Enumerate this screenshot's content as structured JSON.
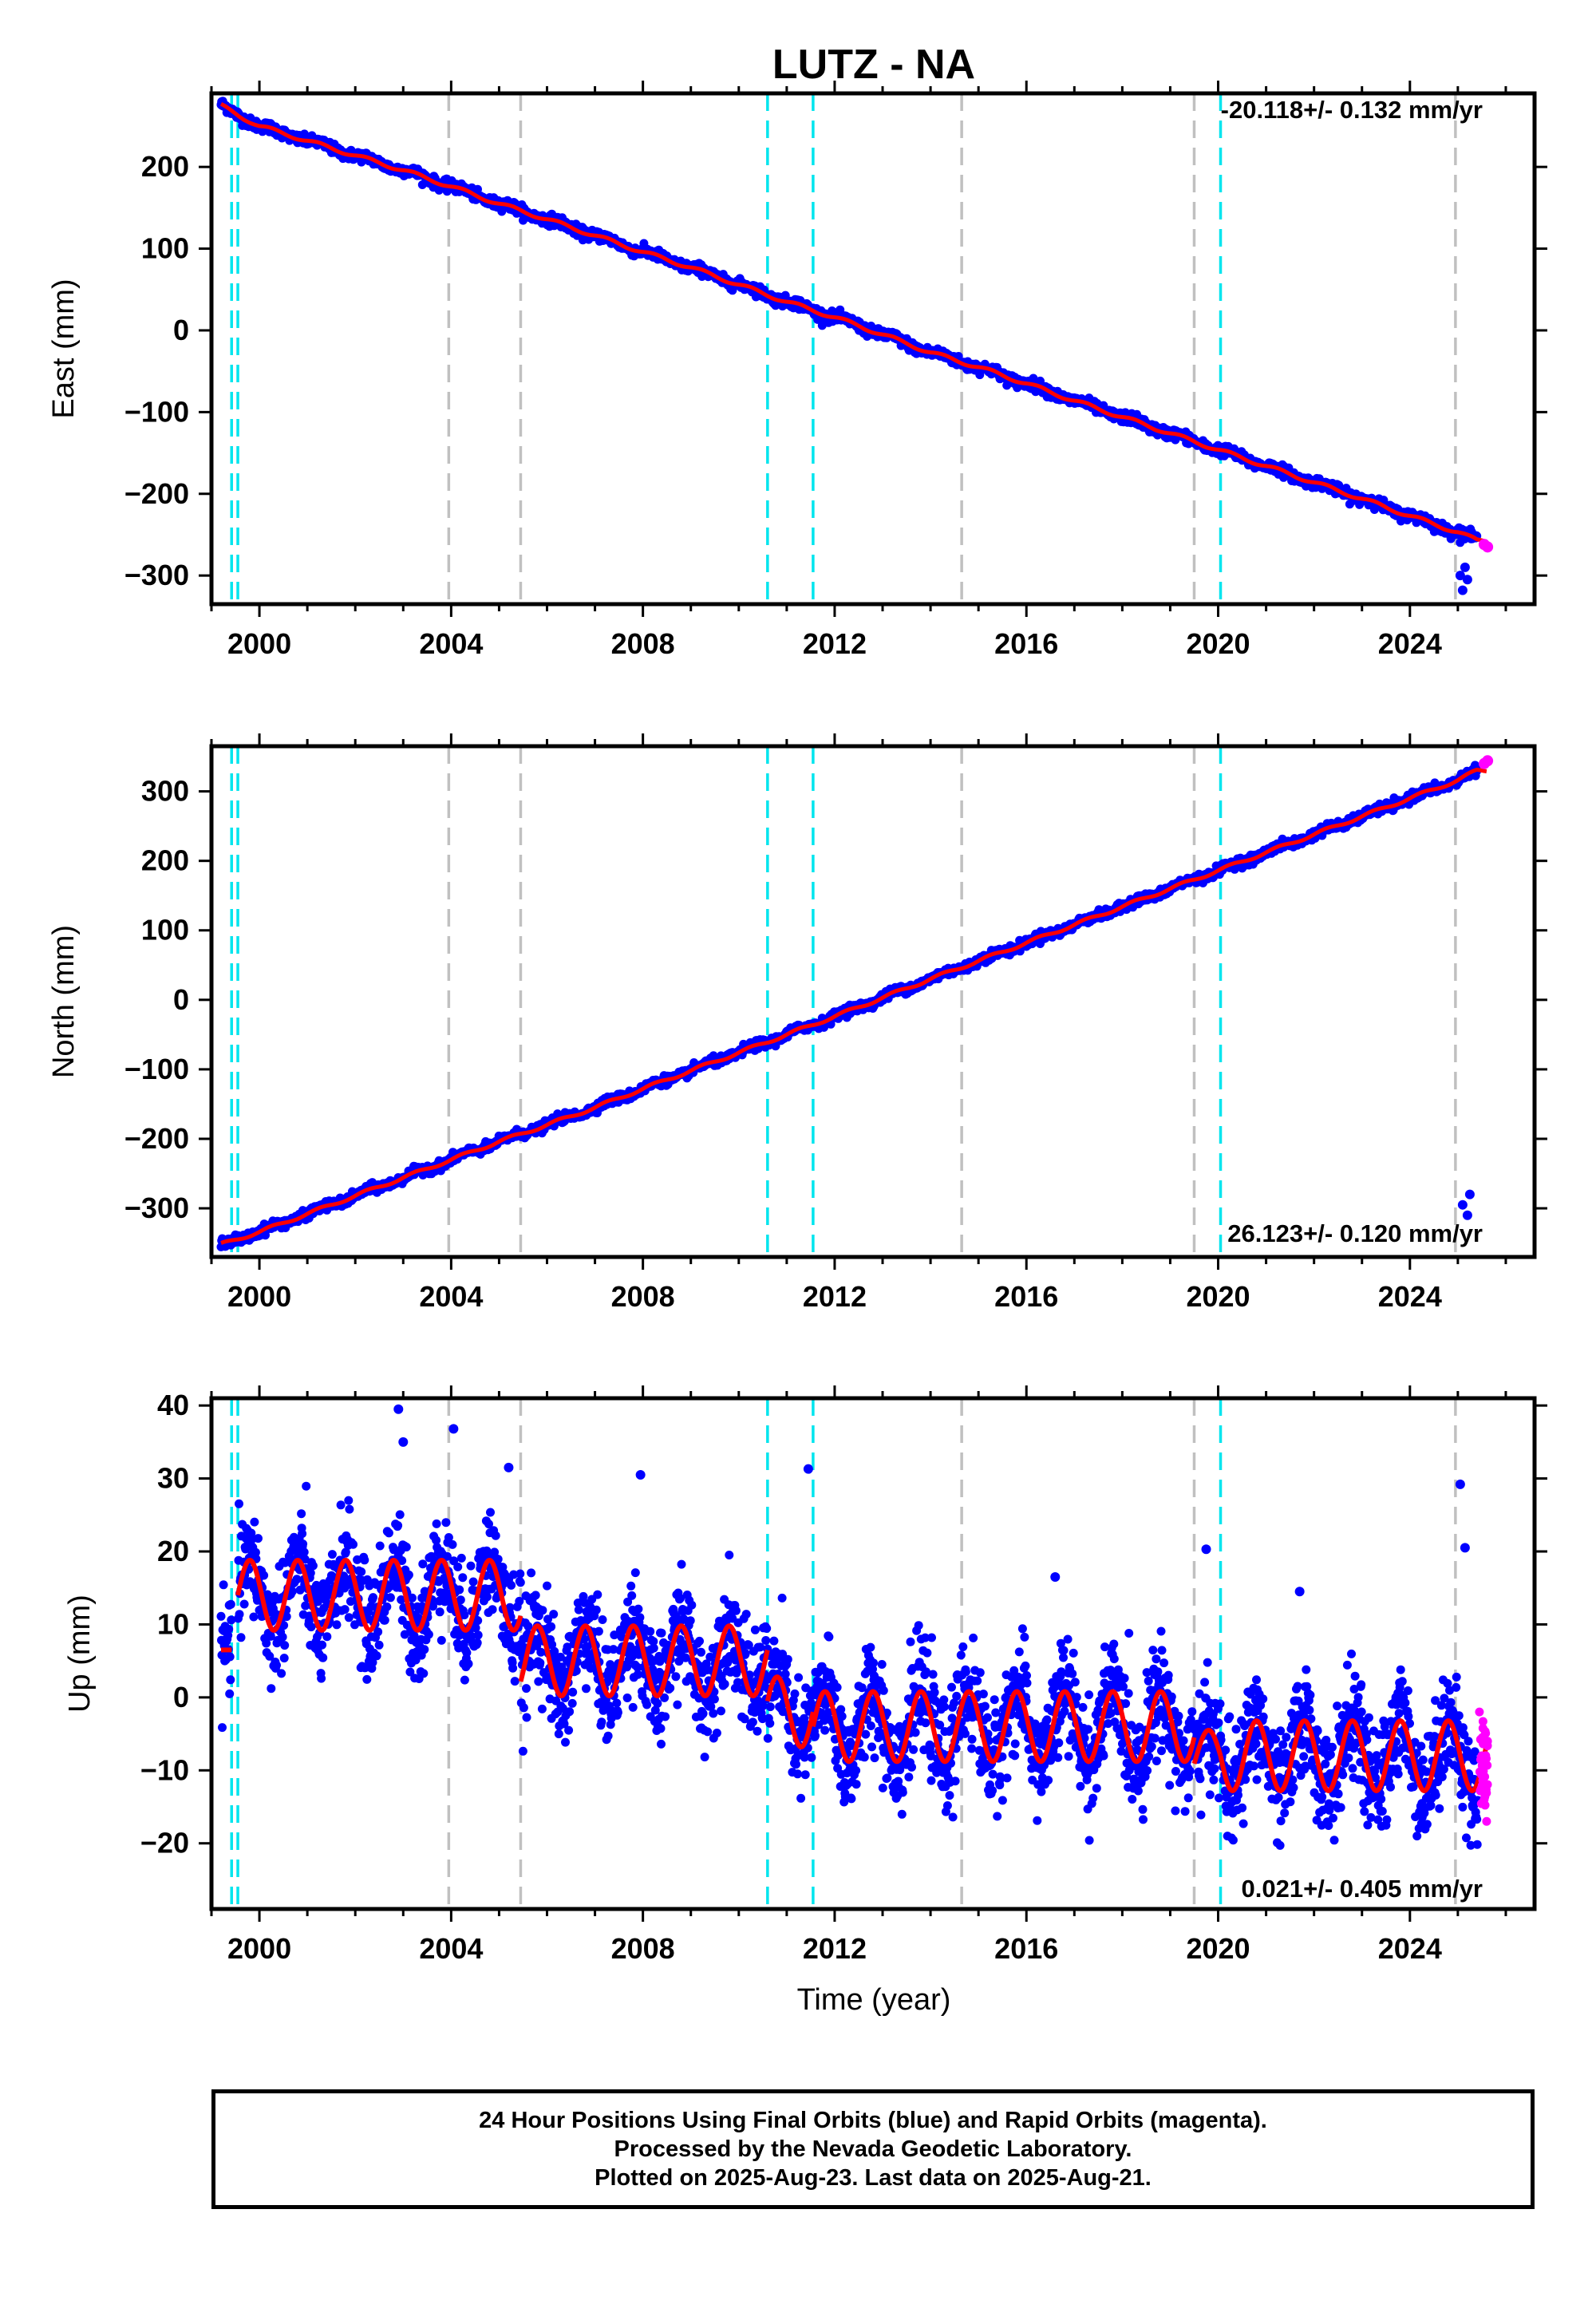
{
  "title": "LUTZ - NA",
  "xlabel": "Time (year)",
  "caption": {
    "line1": "24 Hour Positions Using Final Orbits (blue) and Rapid Orbits (magenta).",
    "line2": "Processed by the Nevada Geodetic Laboratory.",
    "line3": "Plotted on 2025-Aug-23. Last data on 2025-Aug-21."
  },
  "colors": {
    "final_orbits": "#0000ff",
    "rapid_orbits": "#ff00ff",
    "model_fit": "#ff0000",
    "equipment_change": "#00e5ee",
    "earthquake": "#c0c0c0"
  },
  "chart_data": [
    {
      "type": "scatter",
      "ylabel": "East (mm)",
      "rate_annotation": "-20.118+/- 0.132 mm/yr",
      "xlim": [
        1999.0,
        2026.6
      ],
      "ylim": [
        -335,
        290
      ],
      "xticks": [
        2000,
        2004,
        2008,
        2012,
        2016,
        2020,
        2024
      ],
      "xtick_labels": [
        "2000",
        "2004",
        "2008",
        "2012",
        "2016",
        "2020",
        "2024"
      ],
      "yticks": [
        -300,
        -200,
        -100,
        0,
        100,
        200
      ],
      "ytick_labels": [
        "−300",
        "−200",
        "−100",
        "0",
        "100",
        "200"
      ],
      "grid": false,
      "series": [
        {
          "role": "final",
          "x": [
            1999.2,
            1999.6,
            2000,
            2001,
            2002,
            2003,
            2004,
            2005,
            2006,
            2007,
            2008,
            2009,
            2010,
            2011,
            2012,
            2013,
            2014,
            2015,
            2016,
            2017,
            2018,
            2019,
            2020,
            2021,
            2022,
            2023,
            2024,
            2025,
            2025.4
          ],
          "y": [
            275,
            262,
            250,
            232,
            214,
            196,
            176,
            155,
            136,
            116,
            96,
            77,
            56,
            35,
            16,
            -5,
            -27,
            -45,
            -65,
            -86,
            -106,
            -126,
            -146,
            -166,
            -186,
            -206,
            -227,
            -247,
            -257
          ]
        },
        {
          "role": "outliers",
          "x": [
            2025.05,
            2025.1,
            2025.15,
            2025.2
          ],
          "y": [
            -300,
            -318,
            -290,
            -305
          ]
        },
        {
          "role": "rapid",
          "x": [
            2025.55,
            2025.62
          ],
          "y": [
            -262,
            -265
          ]
        },
        {
          "role": "fit",
          "x": [
            1999.2,
            2025.62
          ],
          "y": [
            270,
            -262
          ]
        }
      ],
      "vlines_equipment": [
        1999.42,
        1999.55,
        2010.6,
        2011.55,
        2020.05
      ],
      "vlines_earthquake": [
        2003.95,
        2005.45,
        2014.65,
        2019.5,
        2024.95
      ]
    },
    {
      "type": "scatter",
      "ylabel": "North (mm)",
      "rate_annotation": "26.123+/- 0.120 mm/yr",
      "xlim": [
        1999.0,
        2026.6
      ],
      "ylim": [
        -370,
        365
      ],
      "xticks": [
        2000,
        2004,
        2008,
        2012,
        2016,
        2020,
        2024
      ],
      "xtick_labels": [
        "2000",
        "2004",
        "2008",
        "2012",
        "2016",
        "2020",
        "2024"
      ],
      "yticks": [
        -300,
        -200,
        -100,
        0,
        100,
        200,
        300
      ],
      "ytick_labels": [
        "−300",
        "−200",
        "−100",
        "0",
        "100",
        "200",
        "300"
      ],
      "grid": false,
      "series": [
        {
          "role": "final",
          "x": [
            1999.2,
            2000,
            2001,
            2002,
            2003,
            2004,
            2005,
            2006,
            2007,
            2008,
            2009,
            2010,
            2011,
            2012,
            2013,
            2014,
            2015,
            2016,
            2017,
            2018,
            2019,
            2020,
            2021,
            2022,
            2023,
            2024,
            2025,
            2025.4
          ],
          "y": [
            -352,
            -334,
            -308,
            -282,
            -256,
            -230,
            -204,
            -180,
            -155,
            -128,
            -102,
            -76,
            -50,
            -24,
            3,
            30,
            56,
            82,
            108,
            134,
            160,
            186,
            212,
            238,
            264,
            290,
            316,
            330
          ]
        },
        {
          "role": "outliers",
          "x": [
            2025.1,
            2025.2,
            2025.25
          ],
          "y": [
            -295,
            -310,
            -280
          ]
        },
        {
          "role": "rapid",
          "x": [
            2025.55,
            2025.62
          ],
          "y": [
            340,
            344
          ]
        },
        {
          "role": "fit",
          "x": [
            1999.2,
            2025.62
          ],
          "y": [
            -352,
            344
          ]
        }
      ],
      "vlines_equipment": [
        1999.42,
        1999.55,
        2010.6,
        2011.55,
        2020.05
      ],
      "vlines_earthquake": [
        2003.95,
        2005.45,
        2014.65,
        2019.5,
        2024.95
      ]
    },
    {
      "type": "scatter",
      "ylabel": "Up (mm)",
      "rate_annotation": "0.021+/- 0.405 mm/yr",
      "xlim": [
        1999.0,
        2026.6
      ],
      "ylim": [
        -29,
        41
      ],
      "xticks": [
        2000,
        2004,
        2008,
        2012,
        2016,
        2020,
        2024
      ],
      "xtick_labels": [
        "2000",
        "2004",
        "2008",
        "2012",
        "2016",
        "2020",
        "2024"
      ],
      "yticks": [
        -20,
        -10,
        0,
        10,
        20,
        30,
        40
      ],
      "ytick_labels": [
        "−20",
        "−10",
        "0",
        "10",
        "20",
        "30",
        "40"
      ],
      "grid": false,
      "fit_segments": [
        {
          "x0": 1999.2,
          "x1": 1999.42,
          "offset": 6.5,
          "amp": 0.0
        },
        {
          "x0": 1999.55,
          "x1": 2005.45,
          "offset": 14.0,
          "amp": 4.8
        },
        {
          "x0": 2005.45,
          "x1": 2010.6,
          "offset": 5.0,
          "amp": 4.8
        },
        {
          "x0": 2010.6,
          "x1": 2011.55,
          "offset": -2.0,
          "amp": 4.8
        },
        {
          "x0": 2011.55,
          "x1": 2019.5,
          "offset": -4.0,
          "amp": 4.8
        },
        {
          "x0": 2019.5,
          "x1": 2020.05,
          "offset": -8.0,
          "amp": 3.5
        },
        {
          "x0": 2020.05,
          "x1": 2025.62,
          "offset": -8.0,
          "amp": 4.8
        }
      ],
      "scatter_spread": 6.5,
      "series": [
        {
          "role": "outliers",
          "x": [
            2002.9,
            2003.0,
            2004.05,
            2005.2,
            2007.95,
            2011.45,
            2016.6,
            2019.75,
            2021.7,
            2025.05,
            2025.15
          ],
          "y": [
            39.5,
            35,
            36.8,
            31.5,
            30.5,
            31.3,
            16.5,
            20.3,
            14.5,
            29.2,
            20.5
          ]
        },
        {
          "role": "rapid",
          "x": [
            2025.45,
            2025.5,
            2025.55,
            2025.6,
            2025.62
          ],
          "y": [
            -2,
            -8,
            -14,
            -17,
            -6
          ]
        }
      ],
      "vlines_equipment": [
        1999.42,
        1999.55,
        2010.6,
        2011.55,
        2020.05
      ],
      "vlines_earthquake": [
        2003.95,
        2005.45,
        2014.65,
        2019.5,
        2024.95
      ]
    }
  ]
}
